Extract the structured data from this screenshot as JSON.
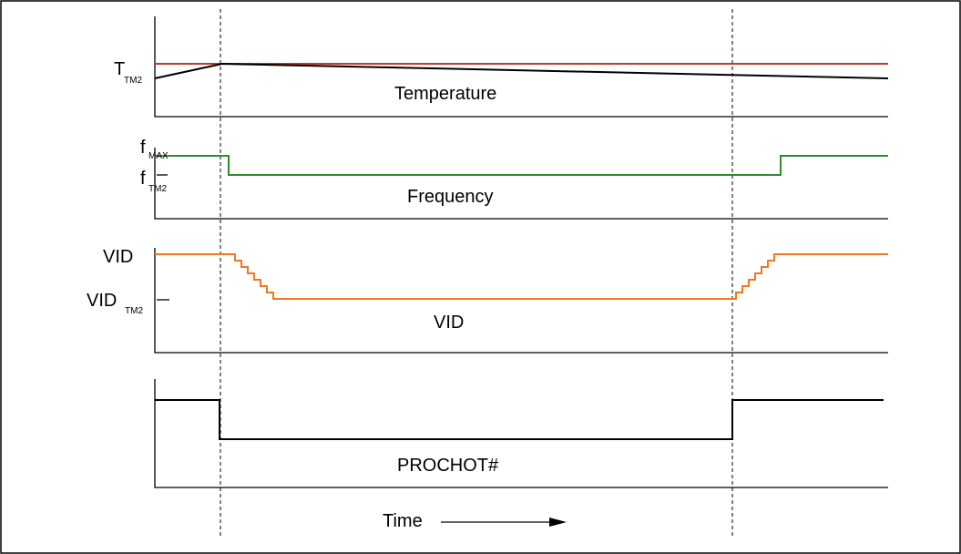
{
  "colors": {
    "frame": "#000000",
    "tm2_threshold": "#c0392b",
    "temperature": "#000000",
    "frequency": "#2e8b2e",
    "vid": "#f07820",
    "prochot": "#000000"
  },
  "panels": {
    "temperature": {
      "label": "Temperature",
      "tick_main": "T",
      "tick_sub": "TM2"
    },
    "frequency": {
      "label": "Frequency",
      "tick_max_main": "f",
      "tick_max_sub": "MAX",
      "tick_tm2_main": "f",
      "tick_tm2_sub": "TM2"
    },
    "vid": {
      "label": "VID",
      "tick_max": "VID",
      "tick_tm2_main": "VID",
      "tick_tm2_sub": "TM2"
    },
    "prochot": {
      "label": "PROCHOT#"
    }
  },
  "x_axis": {
    "label": "Time",
    "arrow_icon": "right-arrow-icon"
  }
}
